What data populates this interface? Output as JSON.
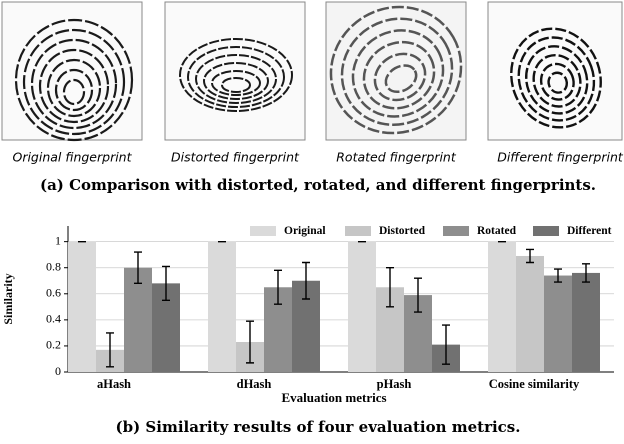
{
  "figure": {
    "images": [
      {
        "label": "Original fingerprint"
      },
      {
        "label": "Distorted fingerprint"
      },
      {
        "label": "Rotated fingerprint"
      },
      {
        "label": "Different fingerprint"
      }
    ],
    "caption_a": "(a) Comparison with distorted, rotated, and different fingerprints.",
    "caption_b": "(b) Similarity results of four evaluation metrics."
  },
  "chart_data": {
    "type": "bar",
    "x_label": "Evaluation metrics",
    "y_label": "Similarity",
    "categories": [
      "aHash",
      "dHash",
      "pHash",
      "Cosine similarity"
    ],
    "series": [
      {
        "name": "Original",
        "color": "#dadada",
        "values": [
          1,
          1,
          1,
          1
        ],
        "errors": [
          0,
          0,
          0,
          0
        ]
      },
      {
        "name": "Distorted",
        "color": "#c6c6c6",
        "values": [
          0.17,
          0.23,
          0.65,
          0.89
        ],
        "errors": [
          0.13,
          0.16,
          0.15,
          0.05
        ]
      },
      {
        "name": "Rotated",
        "color": "#8e8e8e",
        "values": [
          0.8,
          0.65,
          0.59,
          0.74
        ],
        "errors": [
          0.12,
          0.13,
          0.13,
          0.05
        ]
      },
      {
        "name": "Different",
        "color": "#717171",
        "values": [
          0.68,
          0.7,
          0.21,
          0.76
        ],
        "errors": [
          0.13,
          0.14,
          0.15,
          0.07
        ]
      }
    ],
    "ylim": [
      0,
      1.12
    ],
    "yticks": [
      0,
      0.2,
      0.4,
      0.6,
      0.8,
      1
    ],
    "grid": true
  }
}
